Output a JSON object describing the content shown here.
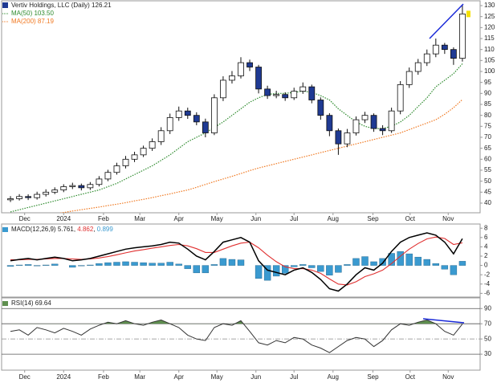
{
  "chart_data": [
    {
      "type": "candlestick",
      "title": "Vertiv Holdings, LLC (Daily)",
      "xlim": [
        -1,
        53
      ],
      "xticks": [
        {
          "value": 1.6,
          "label": "Dec"
        },
        {
          "value": 6,
          "label": "2024"
        },
        {
          "value": 10.5,
          "label": "Feb"
        },
        {
          "value": 14.6,
          "label": "Mar"
        },
        {
          "value": 19,
          "label": "Apr"
        },
        {
          "value": 23.3,
          "label": "May"
        },
        {
          "value": 27.7,
          "label": "Jun"
        },
        {
          "value": 32,
          "label": "Jul"
        },
        {
          "value": 36.4,
          "label": "Aug"
        },
        {
          "value": 40.9,
          "label": "Sep"
        },
        {
          "value": 45.1,
          "label": "Oct"
        },
        {
          "value": 49.4,
          "label": "Nov"
        }
      ],
      "ylim": [
        35.6,
        132.2
      ],
      "yticks": [
        40,
        45,
        50,
        55,
        60,
        65,
        70,
        75,
        80,
        85,
        90,
        95,
        100,
        105,
        110,
        115,
        120,
        125,
        130
      ],
      "open": [
        41.5,
        42,
        43,
        42.5,
        44,
        45,
        46,
        47.5,
        48,
        47,
        48.5,
        51,
        54,
        57,
        60,
        62,
        65,
        68,
        73,
        79,
        82,
        80,
        77,
        72,
        88,
        96,
        98,
        104,
        102,
        92,
        89,
        89.5,
        88,
        91,
        93,
        87,
        80,
        73,
        67,
        72,
        78,
        80,
        74,
        73,
        82,
        94,
        100,
        104,
        108,
        112,
        110,
        106
      ],
      "high": [
        43.2,
        44.1,
        44,
        45.2,
        46.3,
        47.2,
        48.6,
        49.3,
        48.9,
        49.6,
        52.3,
        55.2,
        58.4,
        61.5,
        63.4,
        66.2,
        69.5,
        74.6,
        80.8,
        84,
        83.5,
        81.4,
        78.5,
        89.6,
        97.8,
        100.2,
        106.5,
        105.4,
        103,
        93.5,
        91.2,
        90.5,
        92.6,
        95,
        94,
        88.2,
        81,
        74,
        73.8,
        79.5,
        81.6,
        80.9,
        75.5,
        83.5,
        95.6,
        101.8,
        105.7,
        110,
        115,
        113,
        111,
        130.5
      ],
      "low": [
        40.5,
        41.2,
        41.4,
        41.6,
        43,
        44.1,
        45,
        46.4,
        45.8,
        46,
        47.6,
        50,
        53,
        55.8,
        58.7,
        61,
        63.8,
        66.5,
        71.5,
        77.5,
        78.4,
        75.5,
        70,
        71,
        86.5,
        94.5,
        96.8,
        100.2,
        90,
        87.5,
        87.8,
        86.6,
        87,
        89.8,
        85.5,
        78,
        70.5,
        62,
        65.5,
        70.8,
        76.5,
        72.5,
        71,
        72,
        80.5,
        92.5,
        98.5,
        102.5,
        106.5,
        108,
        103,
        104.5
      ],
      "close": [
        42,
        43,
        42.5,
        44,
        45,
        46,
        47.5,
        48,
        47,
        48.5,
        51,
        54,
        57,
        60,
        62,
        65,
        68,
        73,
        79,
        82,
        80,
        77,
        72,
        88,
        96,
        98,
        104,
        102,
        92,
        89,
        89.5,
        88,
        91,
        93,
        87,
        80,
        73,
        67,
        72,
        78,
        80,
        74,
        73,
        82,
        94,
        100,
        104,
        108,
        112,
        110,
        106,
        126.21
      ],
      "up_color": "#ffffff",
      "down_color": "#1f3a93",
      "marker_color": "#f5e000",
      "series": [
        {
          "name": "MA(50)",
          "color": "#2e8b2e",
          "last_label": "103.50",
          "values": [
            36,
            37,
            38,
            39,
            40,
            41,
            42,
            43,
            44,
            45,
            46,
            47.5,
            49,
            51,
            53,
            55,
            57,
            59.5,
            62,
            65,
            68,
            70,
            72,
            74.5,
            77,
            80,
            83,
            86,
            88,
            89.5,
            90,
            90,
            90.5,
            91,
            90.5,
            89,
            87,
            83,
            80,
            77,
            75,
            74,
            74,
            75,
            77,
            80,
            84,
            88,
            93,
            96,
            99,
            103.5
          ]
        },
        {
          "name": "MA(200)",
          "color": "#f07820",
          "values": [
            null,
            null,
            null,
            null,
            34.5,
            35.1,
            35.7,
            36.4,
            37,
            37.6,
            38.2,
            38.9,
            39.5,
            40.2,
            41,
            41.7,
            42.5,
            43.4,
            44.2,
            45.1,
            46,
            47.2,
            48.5,
            49.8,
            51,
            52.2,
            53.5,
            54.8,
            56,
            57,
            58,
            59,
            60,
            61,
            62,
            63,
            64,
            65,
            66,
            67,
            68,
            69,
            70,
            71,
            72,
            73.5,
            75,
            76.5,
            78,
            80.5,
            83.5,
            87.19
          ]
        }
      ]
    },
    {
      "type": "macd",
      "title": "MACD(12,26,9)",
      "ylim": [
        -6.8,
        8.9
      ],
      "yticks": [
        8,
        6,
        4,
        2,
        0,
        -2,
        -4,
        -6
      ],
      "macd": {
        "color": "#000000",
        "values": [
          1,
          1.3,
          1.5,
          1.2,
          1.5,
          1.8,
          1.5,
          1,
          1.2,
          1.5,
          2,
          2.5,
          3,
          3.5,
          3.8,
          4,
          4.2,
          4.5,
          5,
          4.8,
          3.5,
          2,
          1.2,
          3,
          5,
          5.5,
          6,
          5,
          1,
          -1,
          -1.5,
          -2,
          -1,
          -0.5,
          -1.5,
          -3,
          -5,
          -5.5,
          -4,
          -2,
          -0.5,
          -1,
          0.5,
          3,
          5,
          6,
          6.5,
          7,
          6.5,
          5,
          2.5,
          5.761
        ]
      },
      "signal": {
        "color": "#e03030",
        "values": [
          1.2,
          1.2,
          1.3,
          1.3,
          1.4,
          1.5,
          1.5,
          1.4,
          1.3,
          1.4,
          1.6,
          1.9,
          2.3,
          2.7,
          3.1,
          3.4,
          3.7,
          4,
          4.3,
          4.5,
          4.2,
          3.6,
          2.8,
          2.8,
          3.5,
          4.2,
          4.8,
          5,
          3.8,
          2.2,
          0.8,
          -0.3,
          -0.7,
          -0.7,
          -1,
          -1.7,
          -2.9,
          -4,
          -4.2,
          -3.5,
          -2.4,
          -1.8,
          -1,
          0.4,
          2,
          3.5,
          4.7,
          5.7,
          6.1,
          5.8,
          4.5,
          4.862
        ]
      },
      "histogram": {
        "color": "#3a9ad0",
        "values": [
          -0.2,
          0.1,
          0.2,
          -0.1,
          0.1,
          0.3,
          0,
          -0.4,
          -0.1,
          0.1,
          0.4,
          0.6,
          0.7,
          0.8,
          0.7,
          0.6,
          0.5,
          0.5,
          0.7,
          0.3,
          -0.7,
          -1.6,
          -1.6,
          0.2,
          1.5,
          1.3,
          1.2,
          0,
          -2.8,
          -3.2,
          -2.3,
          -1.7,
          -0.3,
          0.2,
          -0.5,
          -1.3,
          -2.1,
          -1.5,
          0.2,
          1.5,
          1.9,
          0.8,
          1.5,
          2.6,
          3,
          2.5,
          1.8,
          1.3,
          0.4,
          -0.8,
          -2,
          0.899
        ]
      }
    },
    {
      "type": "rsi",
      "title": "RSI(14)",
      "ylim": [
        9,
        104
      ],
      "yticks": [
        90,
        70,
        50,
        30
      ],
      "color": "#333333",
      "fill_color": "#5f8f4f",
      "overbought": 70,
      "values": [
        60,
        62,
        55,
        65,
        62,
        58,
        64,
        60,
        55,
        63,
        68,
        72,
        70,
        74,
        70,
        68,
        72,
        75,
        70,
        65,
        55,
        50,
        48,
        65,
        70,
        68,
        74,
        60,
        45,
        42,
        48,
        45,
        52,
        50,
        42,
        38,
        32,
        40,
        48,
        52,
        50,
        40,
        48,
        62,
        70,
        68,
        72,
        75,
        70,
        60,
        55,
        69.64
      ]
    }
  ]
}
